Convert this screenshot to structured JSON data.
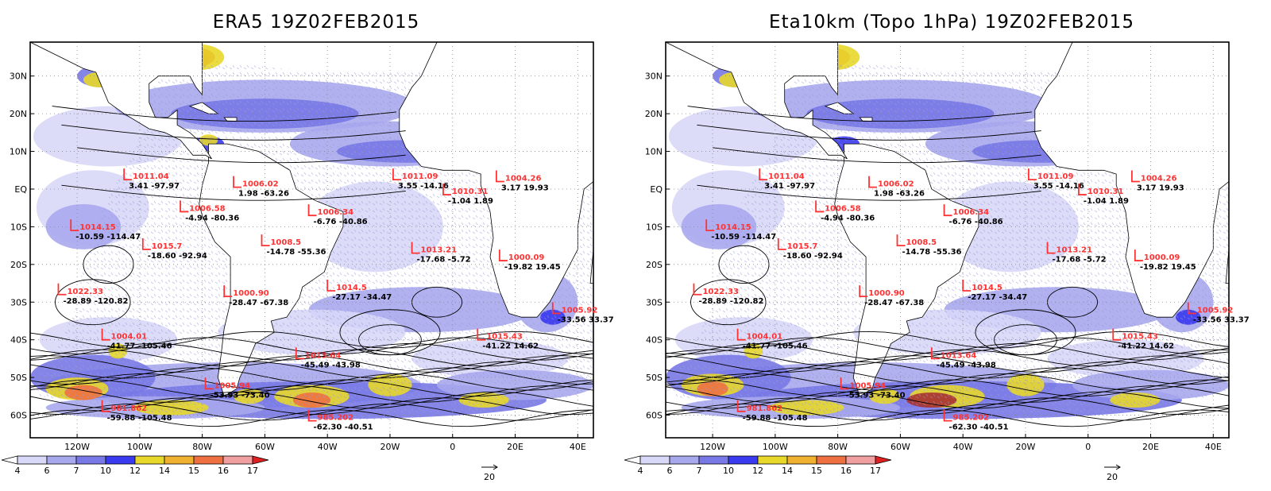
{
  "panels": [
    {
      "title": "ERA5 19Z02FEB2015"
    },
    {
      "title": "Eta10km (Topo 1hPa) 19Z02FEB2015"
    }
  ],
  "lat_labels": [
    "30N",
    "20N",
    "10N",
    "EQ",
    "10S",
    "20S",
    "30S",
    "40S",
    "50S",
    "60S"
  ],
  "lon_labels": [
    "120W",
    "100W",
    "80W",
    "60W",
    "40W",
    "20W",
    "0",
    "20E",
    "40E"
  ],
  "colorbar": {
    "ticks": [
      "4",
      "6",
      "7",
      "10",
      "12",
      "14",
      "15",
      "16",
      "17"
    ],
    "colors": [
      "#ffffff",
      "#d8d8f8",
      "#a8a8ee",
      "#7878e6",
      "#3a3af0",
      "#e8d82a",
      "#f0b030",
      "#ee7040",
      "#f0a0a0",
      "#e02020"
    ]
  },
  "vector_key": "20",
  "colors": {
    "land": "#ffffff",
    "hatch": "#a8a8ee",
    "coast": "#000000"
  },
  "systems": [
    {
      "type": "L",
      "hpa": "1011.04",
      "vals": "3.41  -97.97",
      "lat": 2.5,
      "lon": -105
    },
    {
      "type": "L",
      "hpa": "1006.02",
      "vals": "1.98  -63.26",
      "lat": 0.5,
      "lon": -70
    },
    {
      "type": "L",
      "hpa": "1011.09",
      "vals": "3.55  -14.16",
      "lat": 2.5,
      "lon": -19
    },
    {
      "type": "L",
      "hpa": "1004.26",
      "vals": "3.17  19.93",
      "lat": 2,
      "lon": 14
    },
    {
      "type": "L",
      "hpa": "1010.31",
      "vals": "-1.04  1.89",
      "lat": -1.5,
      "lon": -3
    },
    {
      "type": "L",
      "hpa": "1006.58",
      "vals": "-4.94  -80.36",
      "lat": -6,
      "lon": -87
    },
    {
      "type": "L",
      "hpa": "1006.34",
      "vals": "-6.76  -40.86",
      "lat": -7,
      "lon": -46
    },
    {
      "type": "L",
      "hpa": "1014.15",
      "vals": "-10.59  -114.47",
      "lat": -11,
      "lon": -122
    },
    {
      "type": "L",
      "hpa": "1008.5",
      "vals": "-14.78  -55.36",
      "lat": -15,
      "lon": -61
    },
    {
      "type": "L",
      "hpa": "1015.7",
      "vals": "-18.60  -92.94",
      "lat": -16,
      "lon": -99
    },
    {
      "type": "L",
      "hpa": "1013.21",
      "vals": "-17.68  -5.72",
      "lat": -17,
      "lon": -13
    },
    {
      "type": "L",
      "hpa": "1000.09",
      "vals": "-19.82  19.45",
      "lat": -19,
      "lon": 15
    },
    {
      "type": "L",
      "hpa": "1014.5",
      "vals": "-27.17  -34.47",
      "lat": -27,
      "lon": -40
    },
    {
      "type": "L",
      "hpa": "1000.90",
      "vals": "-28.47  -67.38",
      "lat": -28.5,
      "lon": -73
    },
    {
      "type": "L",
      "hpa": "1022.33",
      "vals": "-28.89  -120.82",
      "lat": -28,
      "lon": -126
    },
    {
      "type": "L",
      "hpa": "1005.92",
      "vals": "-33.56  33.37",
      "lat": -33,
      "lon": 32
    },
    {
      "type": "L",
      "hpa": "1004.01",
      "vals": "-41.77  -105.46",
      "lat": -40,
      "lon": -112
    },
    {
      "type": "L",
      "hpa": "1015.43",
      "vals": "-41.22  14.62",
      "lat": -40,
      "lon": 8
    },
    {
      "type": "L",
      "hpa": "1013.64",
      "vals": "-45.49  -43.98",
      "lat": -45,
      "lon": -50
    },
    {
      "type": "L",
      "hpa": "1005.94",
      "vals": "-53.93  -73.40",
      "lat": -53,
      "lon": -79
    },
    {
      "type": "L",
      "hpa": "981.862",
      "vals": "-59.88  -105.48",
      "lat": -59,
      "lon": -112
    },
    {
      "type": "L",
      "hpa": "985.202",
      "vals": "-62.30  -40.51",
      "lat": -61.5,
      "lon": -46
    }
  ]
}
